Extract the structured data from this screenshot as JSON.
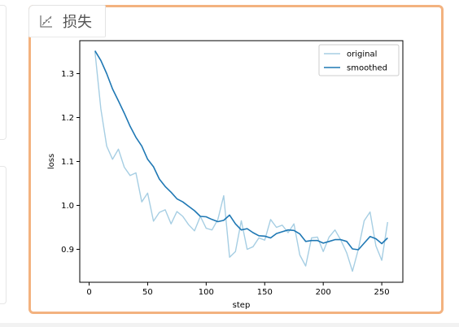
{
  "card": {
    "title": "损失",
    "icon": "chart-scatter-icon"
  },
  "colors": {
    "border": "#f3b27f",
    "original": "#a6cee3",
    "smoothed": "#1f78b4"
  },
  "chart_data": {
    "type": "line",
    "title": "",
    "xlabel": "step",
    "ylabel": "loss",
    "xlim": [
      -8,
      268
    ],
    "ylim": [
      0.825,
      1.375
    ],
    "xticks": [
      0,
      50,
      100,
      150,
      200,
      250
    ],
    "yticks": [
      0.9,
      1.0,
      1.1,
      1.2,
      1.3
    ],
    "xtick_labels": [
      "0",
      "50",
      "100",
      "150",
      "200",
      "250"
    ],
    "ytick_labels": [
      "0.9",
      "1.0",
      "1.1",
      "1.2",
      "1.3"
    ],
    "legend": {
      "position": "top-right",
      "entries": [
        "original",
        "smoothed"
      ]
    },
    "x": [
      5,
      10,
      15,
      20,
      25,
      30,
      35,
      40,
      45,
      50,
      55,
      60,
      65,
      70,
      75,
      80,
      85,
      90,
      95,
      100,
      105,
      110,
      115,
      120,
      125,
      130,
      135,
      140,
      145,
      150,
      155,
      160,
      165,
      170,
      175,
      180,
      185,
      190,
      195,
      200,
      205,
      210,
      215,
      220,
      225,
      230,
      235,
      240,
      245,
      250,
      255
    ],
    "series": [
      {
        "name": "original",
        "values": [
          1.35,
          1.22,
          1.135,
          1.105,
          1.128,
          1.087,
          1.068,
          1.074,
          1.008,
          1.028,
          0.964,
          0.984,
          0.99,
          0.958,
          0.986,
          0.975,
          0.956,
          0.942,
          0.975,
          0.948,
          0.944,
          0.968,
          1.022,
          0.882,
          0.895,
          0.965,
          0.9,
          0.906,
          0.926,
          0.921,
          0.968,
          0.95,
          0.955,
          0.938,
          0.958,
          0.887,
          0.862,
          0.926,
          0.928,
          0.895,
          0.928,
          0.944,
          0.921,
          0.892,
          0.85,
          0.9,
          0.965,
          0.985,
          0.908,
          0.875,
          0.962
        ]
      },
      {
        "name": "smoothed",
        "values": [
          1.352,
          1.33,
          1.3,
          1.265,
          1.238,
          1.21,
          1.18,
          1.155,
          1.135,
          1.105,
          1.088,
          1.06,
          1.043,
          1.03,
          1.015,
          1.008,
          0.998,
          0.988,
          0.975,
          0.974,
          0.968,
          0.963,
          0.966,
          0.978,
          0.958,
          0.944,
          0.947,
          0.938,
          0.931,
          0.93,
          0.926,
          0.936,
          0.94,
          0.944,
          0.943,
          0.935,
          0.918,
          0.92,
          0.92,
          0.914,
          0.918,
          0.922,
          0.922,
          0.918,
          0.901,
          0.899,
          0.914,
          0.929,
          0.924,
          0.913,
          0.926
        ]
      }
    ]
  }
}
